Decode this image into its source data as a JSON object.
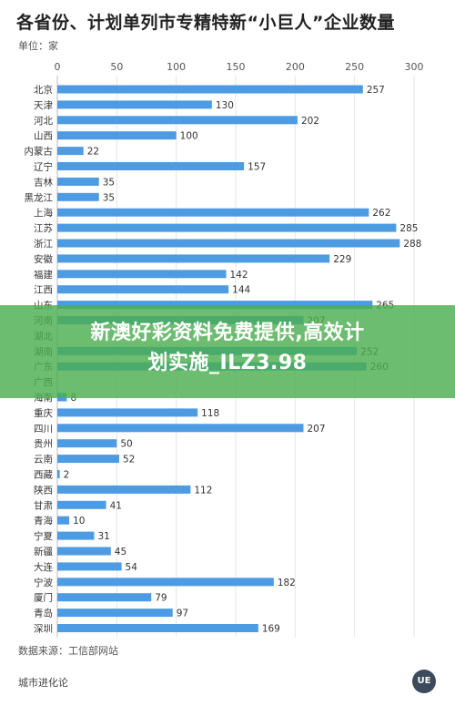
{
  "header": {
    "title": "各省份、计划单列市专精特新“小巨人”企业数量",
    "unit": "单位：家"
  },
  "chart_data": {
    "type": "bar",
    "orientation": "horizontal",
    "title": "各省份、计划单列市专精特新“小巨人”企业数量",
    "unit": "单位：家",
    "xlim": [
      0,
      300
    ],
    "xticks": [
      0,
      50,
      100,
      150,
      200,
      250,
      300
    ],
    "grid": true,
    "bar_color": "#4c9be3",
    "categories": [
      "北京",
      "天津",
      "河北",
      "山西",
      "内蒙古",
      "辽宁",
      "吉林",
      "黑龙江",
      "上海",
      "江苏",
      "浙江",
      "安徽",
      "福建",
      "江西",
      "山东",
      "河南",
      "湖北",
      "湖南",
      "广东",
      "广西",
      "海南",
      "重庆",
      "四川",
      "贵州",
      "云南",
      "西藏",
      "陕西",
      "甘肃",
      "青海",
      "宁夏",
      "新疆",
      "大连",
      "宁波",
      "厦门",
      "青岛",
      "深圳"
    ],
    "values": [
      257,
      130,
      202,
      100,
      22,
      157,
      35,
      35,
      262,
      285,
      288,
      229,
      142,
      144,
      265,
      207,
      0,
      252,
      260,
      0,
      8,
      118,
      207,
      50,
      52,
      2,
      112,
      41,
      10,
      31,
      45,
      54,
      182,
      79,
      97,
      169
    ]
  },
  "banner": {
    "line1": "新澳好彩资料免费提供,高效计",
    "line2": "划实施_ILZ3.98",
    "color": "#4caf50"
  },
  "footer": {
    "source": "数据来源：工信部网站",
    "brand": "城市进化论",
    "logo_text": "UE"
  }
}
